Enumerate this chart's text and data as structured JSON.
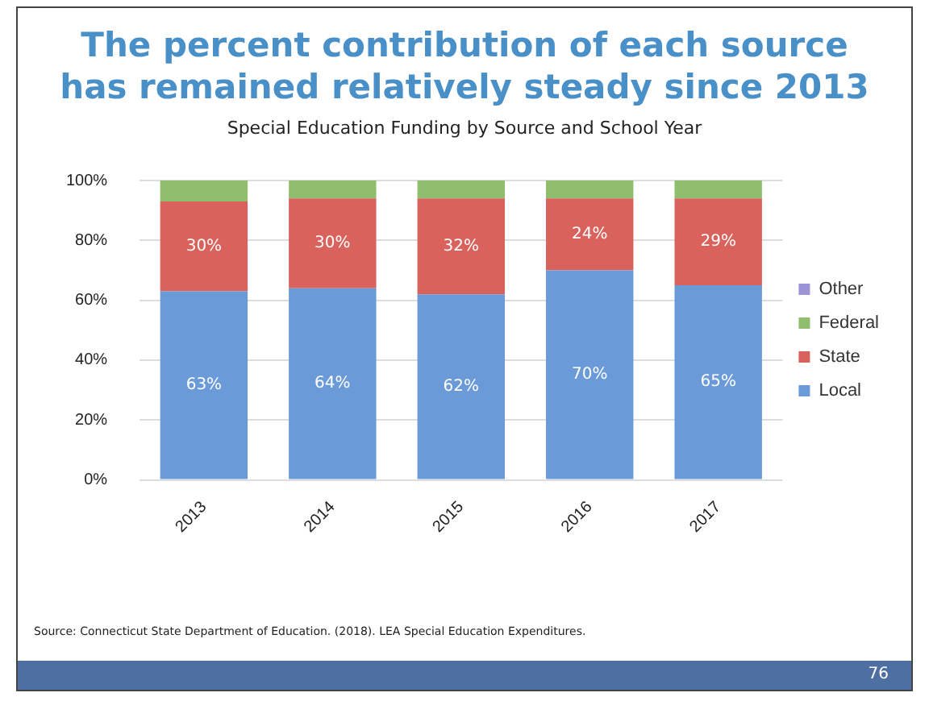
{
  "chart_data": {
    "type": "bar",
    "title": "The percent contribution of each source has remained relatively steady since 2013",
    "subtitle": "Special Education Funding by Source and School Year",
    "categories": [
      "2013",
      "2014",
      "2015",
      "2016",
      "2017"
    ],
    "stacked": true,
    "series": [
      {
        "name": "Local",
        "color": "#6b9ad9",
        "values": [
          63,
          64,
          62,
          70,
          65
        ],
        "value_labels": [
          "63%",
          "64%",
          "62%",
          "70%",
          "65%"
        ]
      },
      {
        "name": "State",
        "color": "#d9625c",
        "values": [
          30,
          30,
          32,
          24,
          29
        ],
        "value_labels": [
          "30%",
          "30%",
          "32%",
          "24%",
          "29%"
        ]
      },
      {
        "name": "Federal",
        "color": "#8fbf6c",
        "values": [
          7,
          6,
          6,
          6,
          6
        ]
      },
      {
        "name": "Other",
        "color": "#9c93d6",
        "values": [
          0,
          0,
          0,
          0,
          0
        ]
      }
    ],
    "ylim": [
      0,
      100
    ],
    "yticks": [
      {
        "value": 0,
        "label": "0%"
      },
      {
        "value": 20,
        "label": "20%"
      },
      {
        "value": 40,
        "label": "40%"
      },
      {
        "value": 60,
        "label": "60%"
      },
      {
        "value": 80,
        "label": "80%"
      },
      {
        "value": 100,
        "label": "100%"
      }
    ],
    "grid": "y",
    "legend": "right",
    "annotations": [
      "Source: Connecticut State Department of Education. (2018). LEA Special Education Expenditures.",
      "76"
    ]
  }
}
